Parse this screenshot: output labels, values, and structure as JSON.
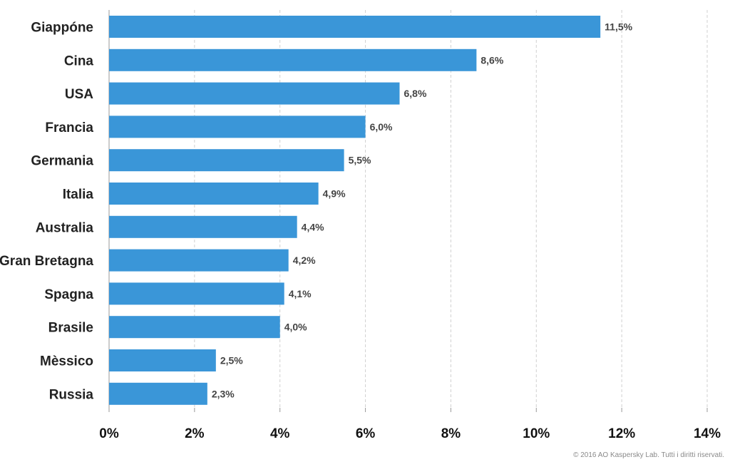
{
  "chart_data": {
    "type": "bar",
    "orientation": "horizontal",
    "categories": [
      "Giappóne",
      "Cina",
      "USA",
      "Francia",
      "Germania",
      "Italia",
      "Australia",
      "Gran Bretagna",
      "Spagna",
      "Brasile",
      "Mèssico",
      "Russia"
    ],
    "values": [
      11.5,
      8.6,
      6.8,
      6.0,
      5.5,
      4.9,
      4.4,
      4.2,
      4.1,
      4.0,
      2.5,
      2.3
    ],
    "value_labels": [
      "11,5%",
      "8,6%",
      "6,8%",
      "6,0%",
      "5,5%",
      "4,9%",
      "4,4%",
      "4,2%",
      "4,1%",
      "4,0%",
      "2,5%",
      "2,3%"
    ],
    "xticks": [
      0,
      2,
      4,
      6,
      8,
      10,
      12,
      14
    ],
    "xtick_labels": [
      "0%",
      "2%",
      "4%",
      "6%",
      "8%",
      "10%",
      "12%",
      "14%"
    ],
    "xlim": [
      0,
      14
    ],
    "grid": "vertical dashed",
    "bar_color": "#3a96d8",
    "title": "",
    "xlabel": "",
    "ylabel": ""
  },
  "footer": {
    "copyright": "© 2016 AO Kaspersky Lab. Tutti i diritti riservati."
  }
}
